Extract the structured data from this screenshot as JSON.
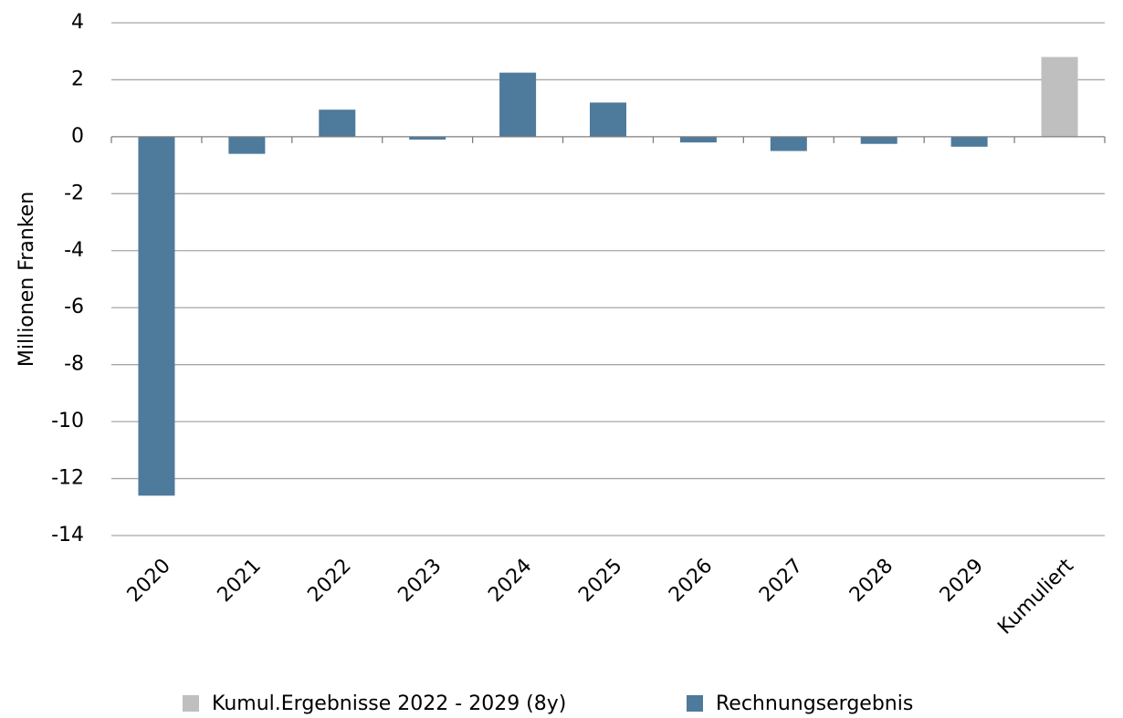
{
  "chart_data": {
    "type": "bar",
    "y_label": "Millionen Franken",
    "categories": [
      "2020",
      "2021",
      "2022",
      "2023",
      "2024",
      "2025",
      "2026",
      "2027",
      "2028",
      "2029",
      "Kumuliert"
    ],
    "series": [
      {
        "name": "Kumul.Ergebnisse 2022 - 2029 (8y)",
        "color": "#bfbfbf",
        "values": [
          null,
          null,
          null,
          null,
          null,
          null,
          null,
          null,
          null,
          null,
          2.8
        ]
      },
      {
        "name": "Rechnungsergebnis",
        "color": "#4e7a9c",
        "values": [
          -12.6,
          -0.6,
          0.95,
          -0.1,
          2.25,
          1.2,
          -0.2,
          -0.5,
          -0.25,
          -0.35,
          null
        ]
      }
    ],
    "ylim": [
      -14,
      4
    ],
    "yticks": [
      -14,
      -12,
      -10,
      -8,
      -6,
      -4,
      -2,
      0,
      2,
      4
    ],
    "grid": true,
    "legend": "bottom"
  }
}
